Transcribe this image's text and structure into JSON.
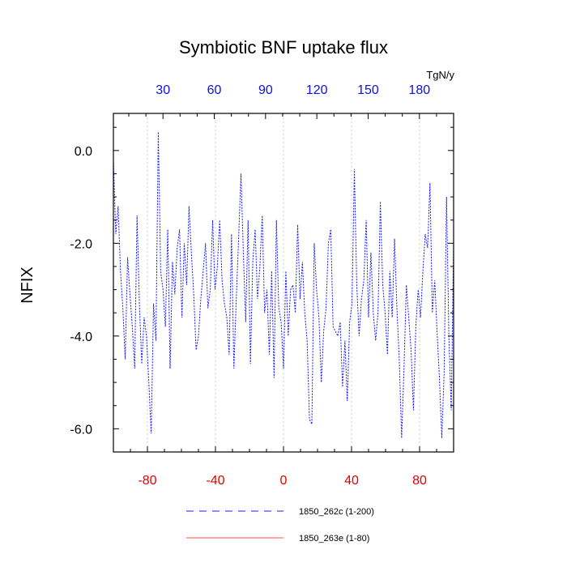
{
  "chart_data": {
    "type": "line",
    "title": "Symbiotic BNF uptake flux",
    "units": "TgN/y",
    "ylabel": "NFIX",
    "xlabel": "",
    "ylim": [
      -6.5,
      0.8
    ],
    "yticks": [
      0.0,
      -2.0,
      -4.0,
      -6.0
    ],
    "ytick_labels": [
      "0.0",
      "-2.0",
      "-4.0",
      "-6.0"
    ],
    "bottom_axis": {
      "range": [
        -100,
        100
      ],
      "ticks": [
        -80,
        -40,
        0,
        40,
        80
      ],
      "labels": [
        "-80",
        "-40",
        "0",
        "40",
        "80"
      ],
      "color": "#e00000"
    },
    "top_axis": {
      "range": [
        1,
        200
      ],
      "ticks": [
        30,
        60,
        90,
        120,
        150,
        180
      ],
      "labels": [
        "30",
        "60",
        "90",
        "120",
        "150",
        "180"
      ],
      "color": "#1010e0"
    },
    "grid": "vertical-dotted",
    "legend_position": "bottom",
    "series": [
      {
        "name": "1850_262c (1-200)",
        "color": "#1a1aff",
        "style": "dashed",
        "axis": "top",
        "x_start": 1,
        "values": [
          -0.2,
          -1.8,
          -1.2,
          -2.6,
          -3.4,
          -4.5,
          -2.3,
          -3.1,
          -3.8,
          -4.7,
          -1.4,
          -3.3,
          -4.6,
          -3.6,
          -4.0,
          -5.0,
          -6.1,
          -3.3,
          -4.1,
          0.4,
          -2.6,
          -3.0,
          -3.8,
          -1.7,
          -4.7,
          -2.4,
          -3.1,
          -2.1,
          -1.7,
          -3.6,
          -2.0,
          -2.9,
          -1.2,
          -2.2,
          -3.1,
          -4.3,
          -4.0,
          -3.2,
          -2.6,
          -2.0,
          -3.4,
          -3.0,
          -1.5,
          -3.0,
          -2.5,
          -1.5,
          -2.8,
          -3.3,
          -3.6,
          -4.4,
          -1.8,
          -4.7,
          -3.2,
          -1.9,
          -0.5,
          -2.2,
          -3.7,
          -1.5,
          -4.6,
          -2.4,
          -1.7,
          -3.2,
          -2.5,
          -1.4,
          -3.5,
          -3.0,
          -4.4,
          -2.6,
          -4.9,
          -1.5,
          -3.4,
          -3.7,
          -4.7,
          -2.6,
          -4.0,
          -3.0,
          -2.9,
          -3.5,
          -1.6,
          -3.2,
          -2.4,
          -3.5,
          -4.1,
          -5.8,
          -5.9,
          -2.0,
          -3.0,
          -3.6,
          -5.0,
          -3.9,
          -3.4,
          -2.0,
          -1.7,
          -3.8,
          -3.9,
          -4.0,
          -3.7,
          -5.1,
          -4.1,
          -5.4,
          -3.7,
          -3.3,
          -0.4,
          -2.9,
          -4.0,
          -3.2,
          -2.8,
          -1.5,
          -3.6,
          -2.2,
          -3.5,
          -4.1,
          -3.5,
          -1.1,
          -2.9,
          -3.5,
          -4.4,
          -2.6,
          -3.6,
          -1.9,
          -3.4,
          -4.5,
          -6.2,
          -4.7,
          -2.9,
          -3.6,
          -4.3,
          -5.6,
          -3.8,
          -3.0,
          -3.6,
          -2.6,
          -1.8,
          -2.1,
          -0.7,
          -3.5,
          -2.8,
          -3.9,
          -4.9,
          -6.2,
          -4.8,
          -1.0,
          -4.0,
          -5.6,
          -2.0
        ]
      },
      {
        "name": "1850_263e (1-80)",
        "color": "#ff4d4d",
        "style": "solid",
        "axis": "bottom",
        "values": []
      }
    ]
  }
}
